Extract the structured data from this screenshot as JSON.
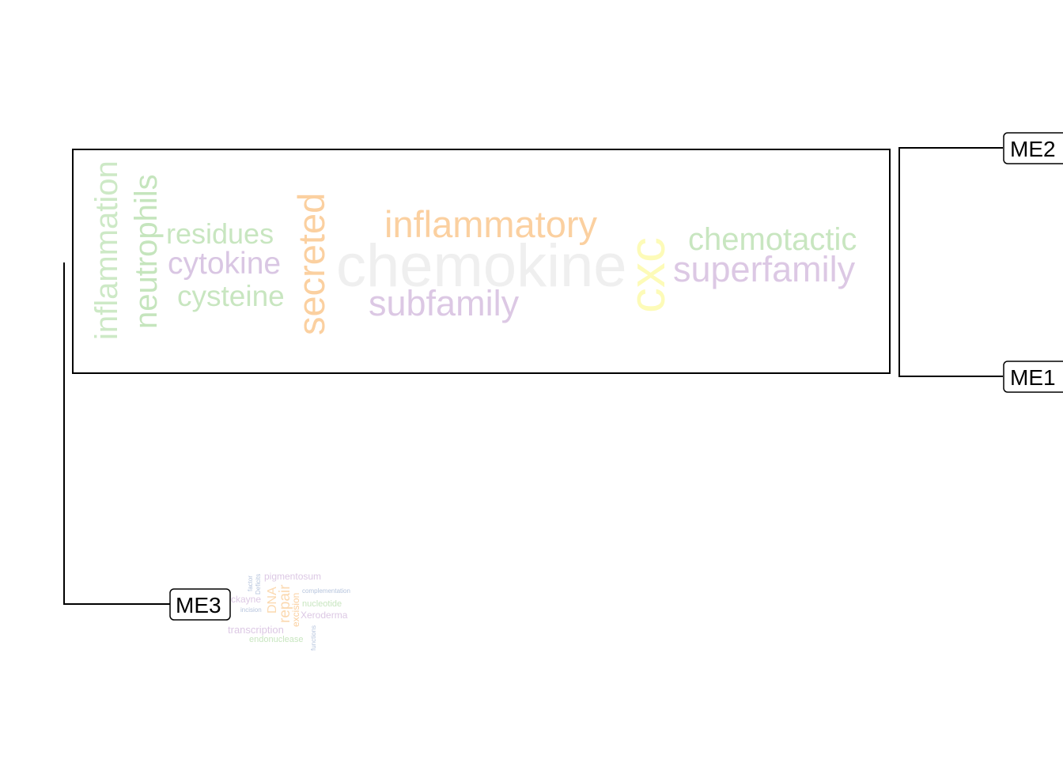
{
  "nodes": {
    "me1": "ME1",
    "me2": "ME2",
    "me3": "ME3"
  },
  "cloud_large": {
    "words": [
      {
        "text": "inflammation",
        "color": "#cde9c6"
      },
      {
        "text": "neutrophils",
        "color": "#c5e5bd"
      },
      {
        "text": "residues",
        "color": "#c8e6c0"
      },
      {
        "text": "cytokine",
        "color": "#d9c6e3"
      },
      {
        "text": "cysteine",
        "color": "#c8e6c0"
      },
      {
        "text": "secreted",
        "color": "#fbd0a0"
      },
      {
        "text": "chemokine",
        "color": "#efefef"
      },
      {
        "text": "inflammatory",
        "color": "#fbd0a0"
      },
      {
        "text": "subfamily",
        "color": "#dcc8e4"
      },
      {
        "text": "cxc",
        "color": "#fdfbb8"
      },
      {
        "text": "chemotactic",
        "color": "#c8e6c0"
      },
      {
        "text": "superfamily",
        "color": "#dcc8e4"
      }
    ]
  },
  "cloud_small": {
    "words": [
      {
        "text": "pigmentosum",
        "color": "#dcc8e4"
      },
      {
        "text": "factor",
        "color": "#b6c4dd"
      },
      {
        "text": "Deficits",
        "color": "#b6c4dd"
      },
      {
        "text": "DNA",
        "color": "#fbd9b0"
      },
      {
        "text": "repair",
        "color": "#fbd9b0"
      },
      {
        "text": "excision",
        "color": "#fbd0a0"
      },
      {
        "text": "complementation",
        "color": "#b6c4dd"
      },
      {
        "text": "ckayne",
        "color": "#dcc8e4"
      },
      {
        "text": "nucleotide",
        "color": "#c8e6c0"
      },
      {
        "text": "incision",
        "color": "#b6c4dd"
      },
      {
        "text": "Xeroderma",
        "color": "#dcc8e4"
      },
      {
        "text": "transcription",
        "color": "#dcc8e4"
      },
      {
        "text": "endonuclease",
        "color": "#c8e6c0"
      },
      {
        "text": "functions",
        "color": "#b6c4dd"
      }
    ]
  }
}
